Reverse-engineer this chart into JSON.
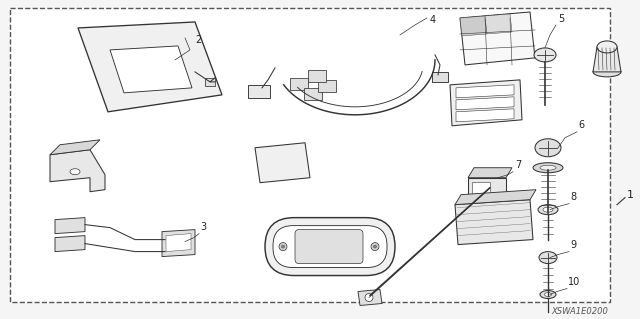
{
  "bg_color": "#f5f5f5",
  "border_color": "#666666",
  "figure_width": 6.4,
  "figure_height": 3.19,
  "dpi": 100,
  "diagram_code": "XSWA1E0200",
  "text_color": "#222222",
  "line_color": "#333333",
  "lw": 0.75
}
